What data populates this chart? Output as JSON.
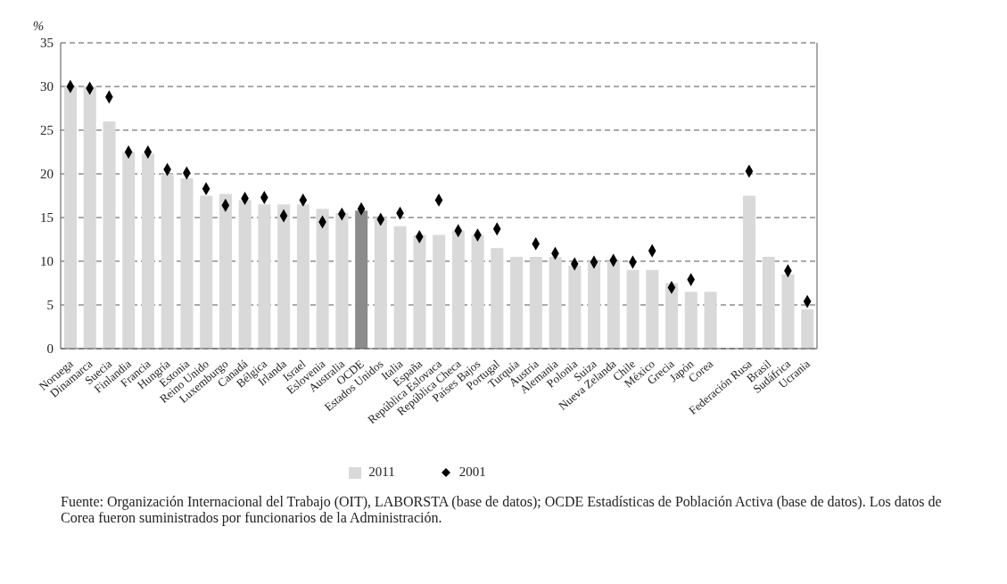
{
  "chart_data": {
    "type": "bar",
    "ylabel": "%",
    "categories": [
      "Noruega",
      "Dinamarca",
      "Suecia",
      "Finlandia",
      "Francia",
      "Hungría",
      "Estonia",
      "Reino Unido",
      "Luxemburgo",
      "Canadá",
      "Bélgica",
      "Irlanda",
      "Israel",
      "Eslovenia",
      "Australia",
      "OCDE",
      "Estados Unidos",
      "Italia",
      "España",
      "República Eslovaca",
      "República Checa",
      "Países Bajos",
      "Portugal",
      "Turquía",
      "Austria",
      "Alemania",
      "Polonia",
      "Suiza",
      "Nueva Zelanda",
      "Chile",
      "México",
      "Grecia",
      "Japón",
      "Corea",
      null,
      "Federación Rusa",
      "Brasil",
      "Sudáfrica",
      "Ucrania"
    ],
    "series": [
      {
        "name": "2011",
        "color": "#d9d9d9",
        "colors": [
          "#d9d9d9",
          "#d9d9d9",
          "#d9d9d9",
          "#d9d9d9",
          "#d9d9d9",
          "#d9d9d9",
          "#d9d9d9",
          "#d9d9d9",
          "#d9d9d9",
          "#d9d9d9",
          "#d9d9d9",
          "#d9d9d9",
          "#d9d9d9",
          "#d9d9d9",
          "#d9d9d9",
          "#8c8c8c",
          "#d9d9d9",
          "#d9d9d9",
          "#d9d9d9",
          "#d9d9d9",
          "#d9d9d9",
          "#d9d9d9",
          "#d9d9d9",
          "#d9d9d9",
          "#d9d9d9",
          "#d9d9d9",
          "#d9d9d9",
          "#d9d9d9",
          "#d9d9d9",
          "#d9d9d9",
          "#d9d9d9",
          "#d9d9d9",
          "#d9d9d9",
          "#d9d9d9",
          "#d9d9d9",
          "#d9d9d9",
          "#d9d9d9",
          "#d9d9d9",
          "#d9d9d9"
        ],
        "values": [
          30,
          30,
          26,
          22.5,
          22.3,
          20,
          19.5,
          17.5,
          17.7,
          17,
          16.5,
          16.5,
          16.5,
          16,
          15.5,
          15.8,
          15,
          14,
          13,
          13,
          13.5,
          13,
          11.5,
          10.5,
          10.5,
          10.5,
          9.5,
          10,
          10,
          9,
          9,
          7.5,
          6.5,
          6.5,
          null,
          17.5,
          10.5,
          8.5,
          4.5
        ]
      },
      {
        "name": "2001",
        "type": "scatter",
        "color": "#000000",
        "values": [
          30,
          29.8,
          28.8,
          22.5,
          22.5,
          20.5,
          20.1,
          18.3,
          16.4,
          17.2,
          17.3,
          15.2,
          17,
          14.5,
          15.4,
          16,
          14.8,
          15.5,
          12.8,
          17,
          13.5,
          13,
          13.7,
          null,
          12,
          10.9,
          9.7,
          9.9,
          10.1,
          9.9,
          11.2,
          7,
          7.9,
          null,
          null,
          20.3,
          null,
          8.9,
          5.4
        ]
      }
    ],
    "ylim": [
      0,
      35
    ],
    "yticks": [
      0,
      5,
      10,
      15,
      20,
      25,
      30,
      35
    ],
    "grid": "y",
    "legend": "bottom",
    "marker": "diamond",
    "annotations": [
      "Fuente:  Organización Internacional del Trabajo (OIT), LABORSTA (base de datos); OCDE Estadísticas de Población Activa (base de datos). Los datos de Corea fueron suministrados por funcionarios de la Administración."
    ]
  }
}
